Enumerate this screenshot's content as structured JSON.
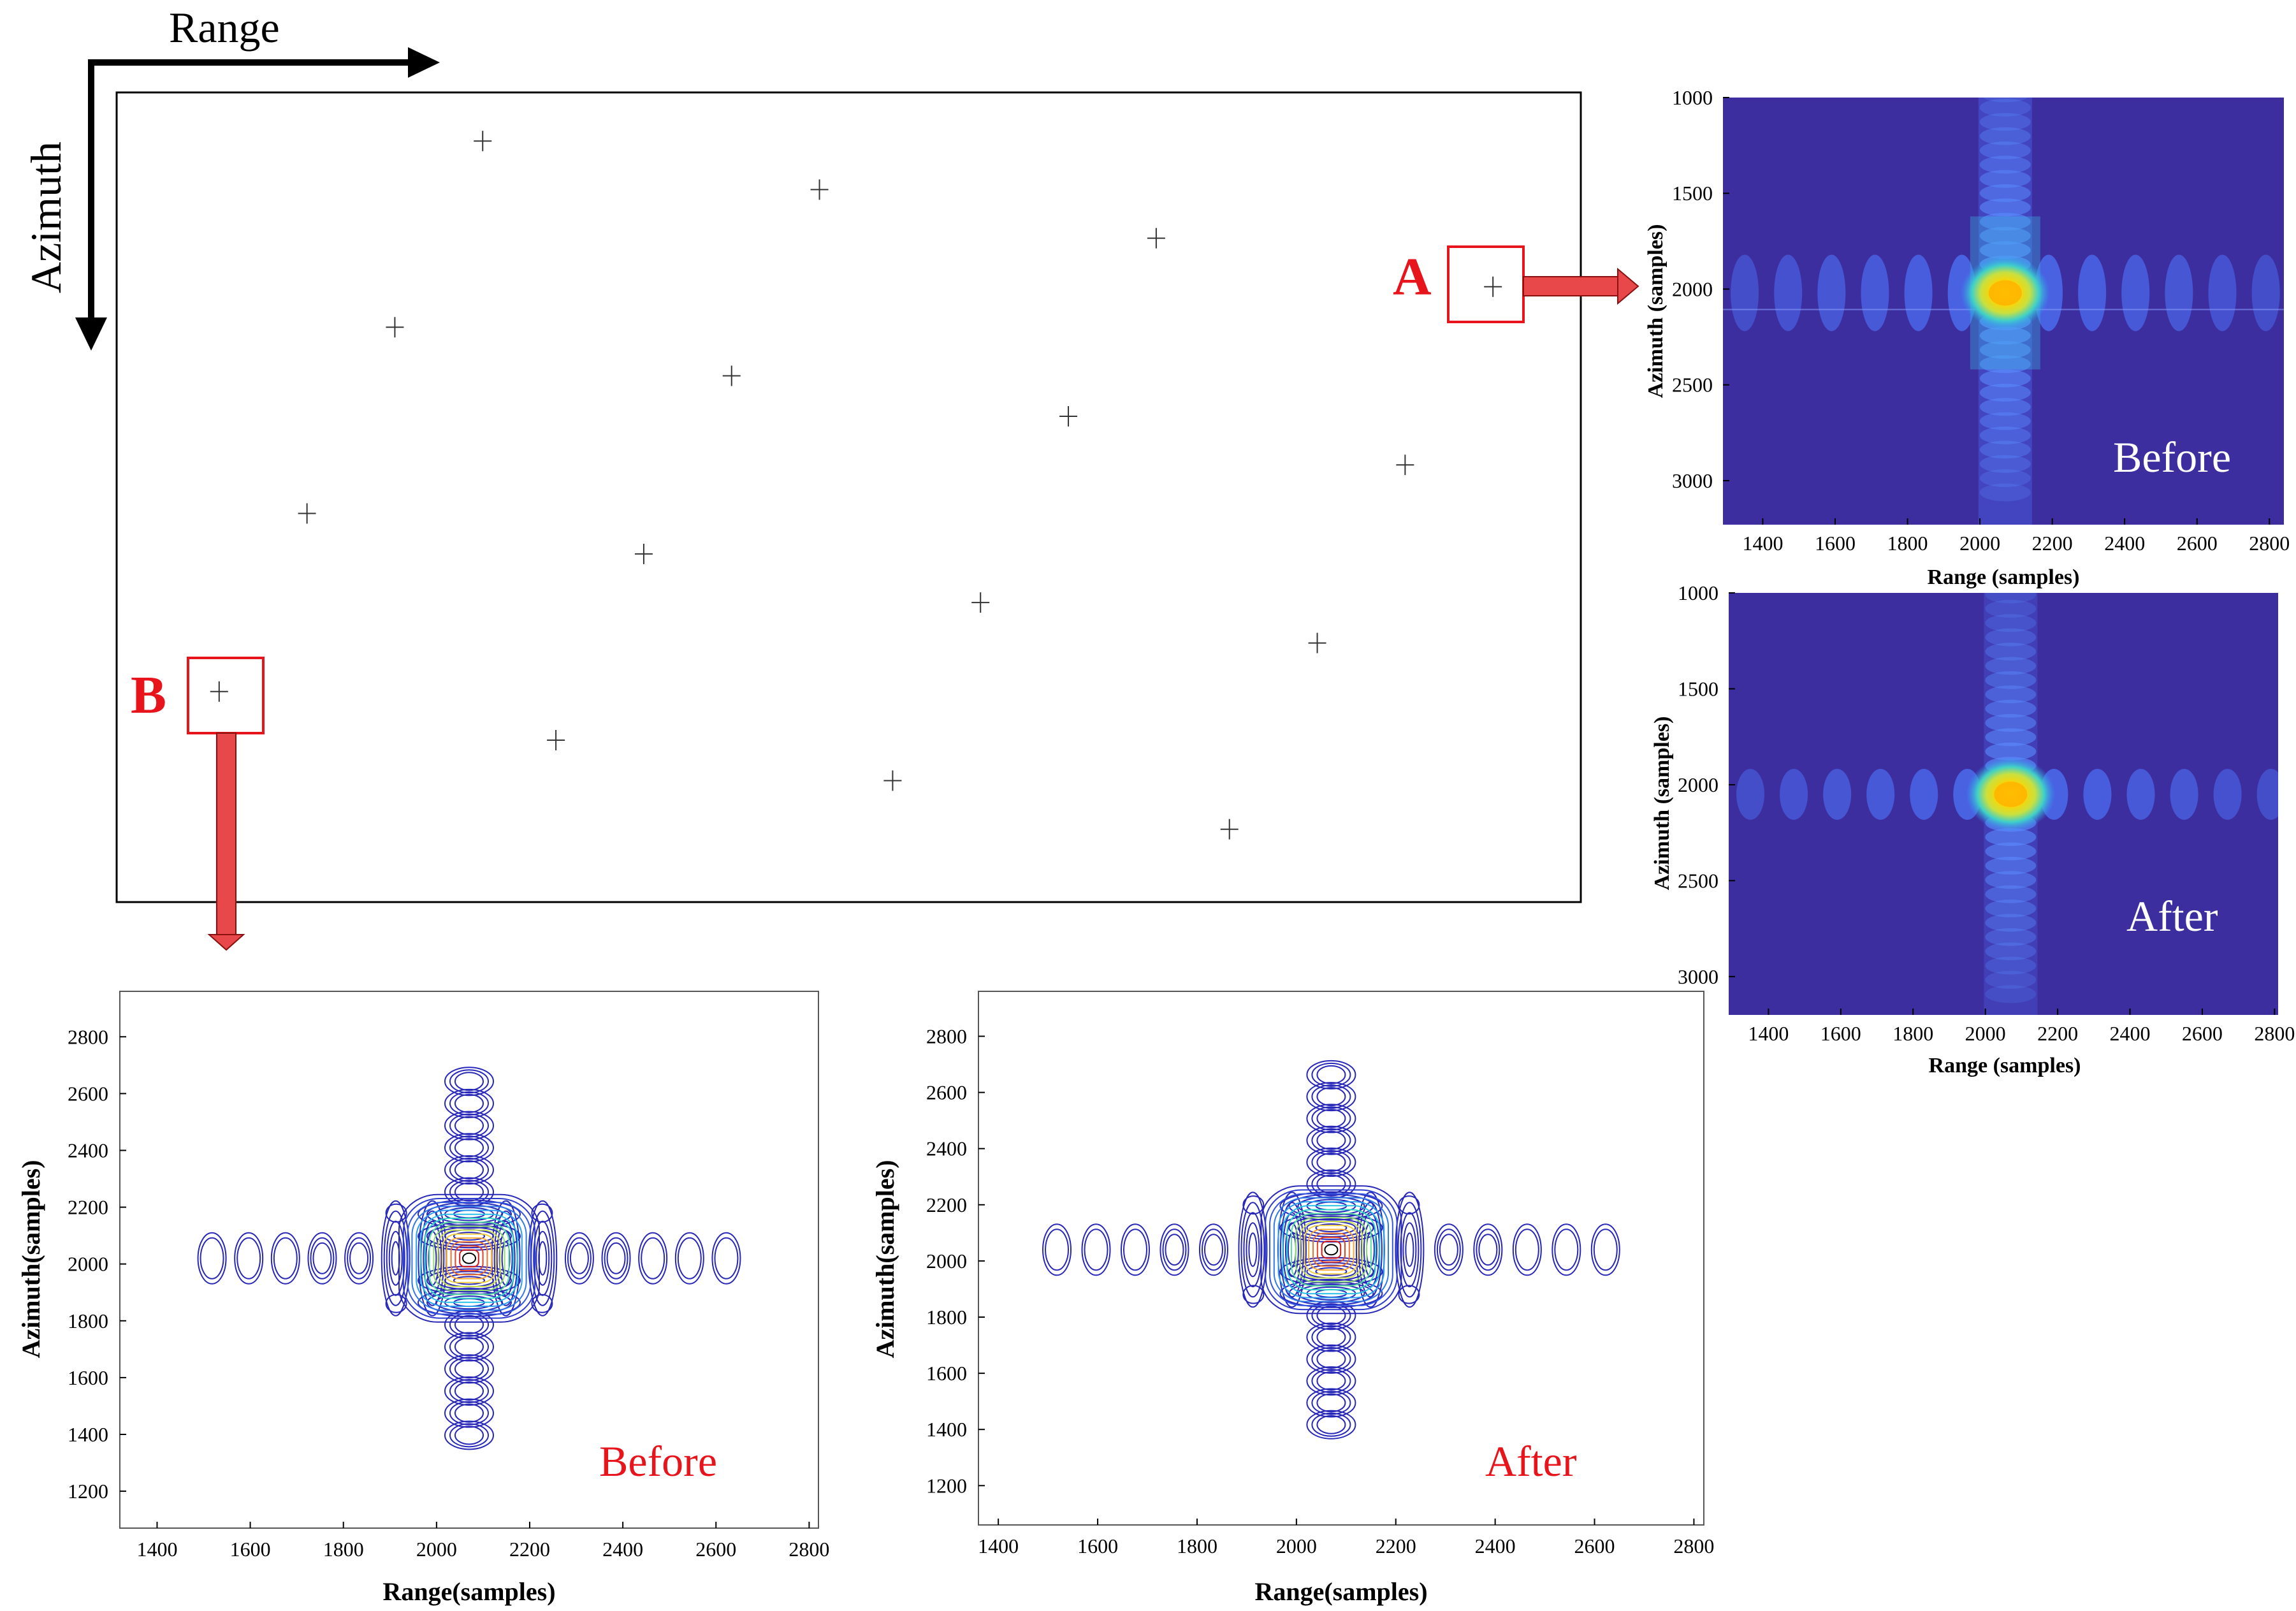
{
  "scene": {
    "range_label": "Range",
    "azimuth_label": "Azimuth",
    "marker_a": "A",
    "marker_b": "B",
    "targets": [
      {
        "col": 0.25,
        "row": 0.06
      },
      {
        "col": 0.48,
        "row": 0.12
      },
      {
        "col": 0.71,
        "row": 0.18
      },
      {
        "col": 0.94,
        "row": 0.24
      },
      {
        "col": 0.19,
        "row": 0.29
      },
      {
        "col": 0.42,
        "row": 0.35
      },
      {
        "col": 0.65,
        "row": 0.4
      },
      {
        "col": 0.88,
        "row": 0.46
      },
      {
        "col": 0.13,
        "row": 0.52
      },
      {
        "col": 0.36,
        "row": 0.57
      },
      {
        "col": 0.59,
        "row": 0.63
      },
      {
        "col": 0.82,
        "row": 0.68
      },
      {
        "col": 0.07,
        "row": 0.74
      },
      {
        "col": 0.3,
        "row": 0.8
      },
      {
        "col": 0.53,
        "row": 0.85
      },
      {
        "col": 0.76,
        "row": 0.91
      }
    ]
  },
  "chart_data": [
    {
      "id": "heatmap_before",
      "type": "heatmap",
      "label": "Before",
      "xlabel": "Range (samples)",
      "ylabel": "Azimuth (samples)",
      "xlim": [
        1290,
        2840
      ],
      "ylim": [
        1000,
        3230
      ],
      "xticks": [
        1400,
        1600,
        1800,
        2000,
        2200,
        2400,
        2600,
        2800
      ],
      "yticks": [
        1000,
        1500,
        2000,
        2500,
        3000
      ],
      "peak": {
        "range": 2070,
        "azimuth": 2020
      },
      "range_lobe_spacing": 120,
      "azimuth_lobe_spacing": 120
    },
    {
      "id": "heatmap_after",
      "type": "heatmap",
      "label": "After",
      "xlabel": "Range (samples)",
      "ylabel": "Azimuth (samples)",
      "xlim": [
        1290,
        2810
      ],
      "ylim": [
        1000,
        3200
      ],
      "xticks": [
        1400,
        1600,
        1800,
        2000,
        2200,
        2400,
        2600,
        2800
      ],
      "yticks": [
        1000,
        1500,
        2000,
        2500,
        3000
      ],
      "peak": {
        "range": 2070,
        "azimuth": 2050
      },
      "range_lobe_spacing": 120,
      "azimuth_lobe_spacing": 120
    },
    {
      "id": "contour_before",
      "type": "contour",
      "label": "Before",
      "xlabel": "Range(samples)",
      "ylabel": "Azimuth(samples)",
      "xlim": [
        1320,
        2820
      ],
      "ylim": [
        1070,
        2960
      ],
      "xticks": [
        1400,
        1600,
        1800,
        2000,
        2200,
        2400,
        2600,
        2800
      ],
      "yticks": [
        1200,
        1400,
        1600,
        1800,
        2000,
        2200,
        2400,
        2600,
        2800
      ],
      "peak": {
        "range": 2070,
        "azimuth": 2020
      },
      "range_lobe_spacing": 116,
      "azimuth_lobe_spacing": 118
    },
    {
      "id": "contour_after",
      "type": "contour",
      "label": "After",
      "xlabel": "Range(samples)",
      "ylabel": "Azimuth(samples)",
      "xlim": [
        1360,
        2820
      ],
      "ylim": [
        1060,
        2960
      ],
      "xticks": [
        1400,
        1600,
        1800,
        2000,
        2200,
        2400,
        2600,
        2800
      ],
      "yticks": [
        1200,
        1400,
        1600,
        1800,
        2000,
        2200,
        2400,
        2600,
        2800
      ],
      "peak": {
        "range": 2070,
        "azimuth": 2040
      },
      "range_lobe_spacing": 116,
      "azimuth_lobe_spacing": 118
    }
  ]
}
